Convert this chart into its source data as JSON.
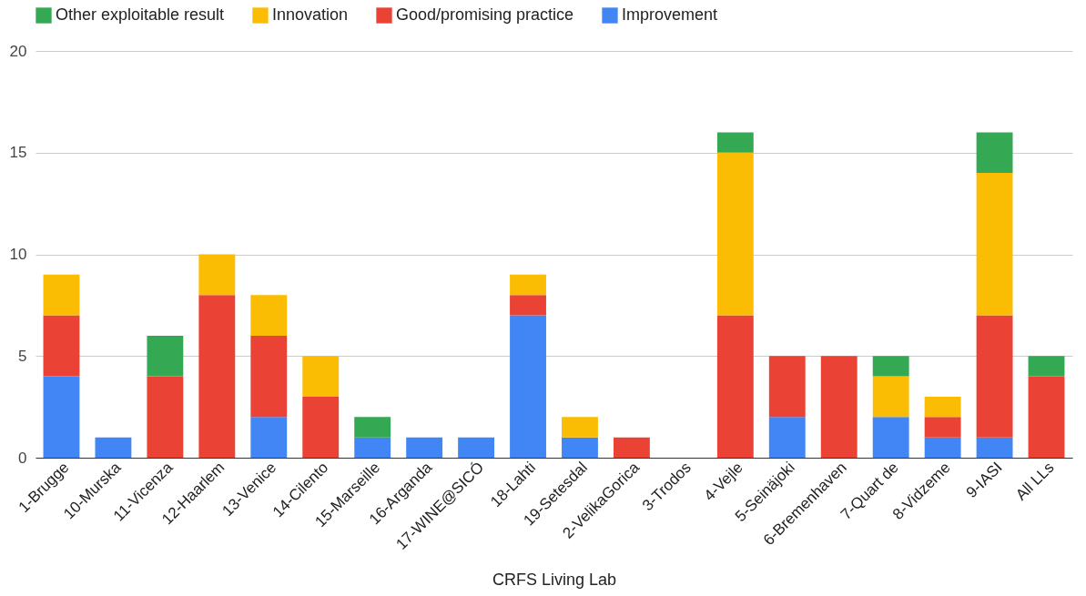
{
  "chart_data": {
    "type": "bar",
    "stacked": true,
    "xlabel": "CRFS Living Lab",
    "categories": [
      "1-Brugge",
      "10-Murska",
      "11-Vicenza",
      "12-Haarlem",
      "13-Venice",
      "14-Cilento",
      "15-Marseille",
      "16-Arganda",
      "17-WINE@SICÓ",
      "18-Lahti",
      "19-Setesdal",
      "2-VelikaGorica",
      "3-Trodos",
      "4-Vejle",
      "5-Seinäjoki",
      "6-Bremenhaven",
      "7-Quart de",
      "8-Vidzeme",
      "9-IASI",
      "All LLs"
    ],
    "series": [
      {
        "name": "Improvement",
        "color": "#4285f4",
        "values": [
          4,
          1,
          null,
          null,
          2,
          null,
          1,
          1,
          1,
          7,
          1,
          null,
          null,
          null,
          2,
          null,
          2,
          1,
          1,
          null
        ]
      },
      {
        "name": "Good/promising practice",
        "color": "#ea4335",
        "values": [
          3,
          null,
          4,
          8,
          4,
          3,
          null,
          null,
          null,
          1,
          null,
          1,
          null,
          7,
          3,
          5,
          null,
          1,
          6,
          4
        ]
      },
      {
        "name": "Innovation",
        "color": "#fbbc04",
        "values": [
          2,
          null,
          null,
          2,
          2,
          2,
          null,
          null,
          null,
          1,
          1,
          null,
          null,
          8,
          null,
          null,
          2,
          1,
          7,
          null
        ]
      },
      {
        "name": "Other exploitable result",
        "color": "#34a853",
        "values": [
          null,
          null,
          2,
          null,
          null,
          null,
          1,
          null,
          null,
          null,
          null,
          null,
          null,
          1,
          null,
          null,
          1,
          null,
          2,
          1
        ]
      }
    ],
    "ylim": [
      0,
      20
    ],
    "yticks": [
      0,
      5,
      10,
      15,
      20
    ],
    "grid": "y",
    "legend": "top"
  }
}
